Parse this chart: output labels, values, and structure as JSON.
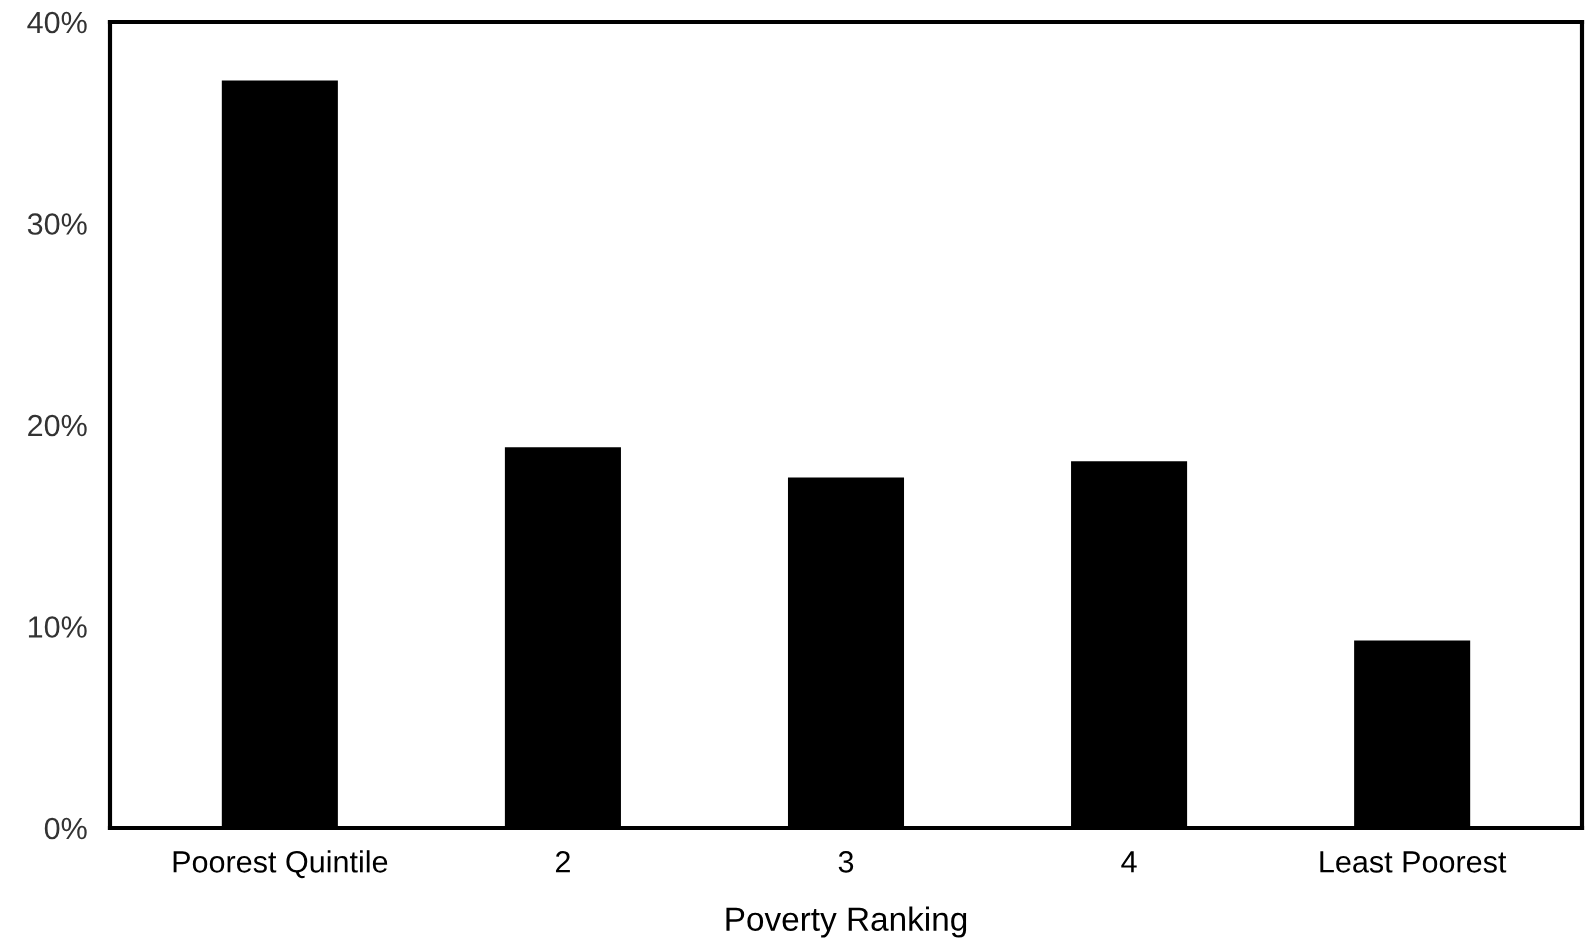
{
  "chart_data": {
    "type": "bar",
    "xlabel": "Poverty Ranking",
    "categories": [
      "Poorest Quintile",
      "2",
      "3",
      "4",
      "Least Poorest"
    ],
    "values": [
      37.1,
      18.9,
      17.4,
      18.2,
      9.3
    ],
    "color": "#000000",
    "ylim": [
      0,
      40
    ],
    "yticks": [
      {
        "value": 0,
        "label": "0%"
      },
      {
        "value": 10,
        "label": "10%"
      },
      {
        "value": 20,
        "label": "20%"
      },
      {
        "value": 30,
        "label": "30%"
      },
      {
        "value": 40,
        "label": "40%"
      }
    ],
    "grid": false,
    "legend": false
  }
}
